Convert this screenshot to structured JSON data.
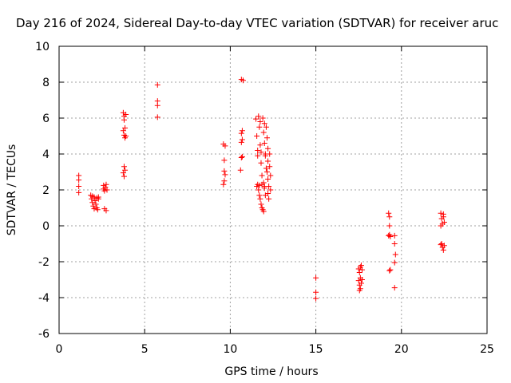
{
  "chart_data": {
    "type": "scatter",
    "title": "Day 216 of 2024, Sidereal Day-to-day VTEC variation (SDTVAR) for receiver aruc",
    "xlabel": "GPS time / hours",
    "ylabel": "SDTVAR / TECUs",
    "xlim": [
      0,
      25
    ],
    "ylim": [
      -6,
      10
    ],
    "xticks": [
      0,
      5,
      10,
      15,
      20,
      25
    ],
    "yticks": [
      -6,
      -4,
      -2,
      0,
      2,
      4,
      6,
      8,
      10
    ],
    "grid": true,
    "marker": "+",
    "color": "#ff0000",
    "series": [
      {
        "name": "SDTVAR",
        "points": [
          [
            1.15,
            2.8
          ],
          [
            1.15,
            2.55
          ],
          [
            1.15,
            2.2
          ],
          [
            1.15,
            1.85
          ],
          [
            1.85,
            1.7
          ],
          [
            1.9,
            1.5
          ],
          [
            1.95,
            1.3
          ],
          [
            2.0,
            1.1
          ],
          [
            2.05,
            1.6
          ],
          [
            2.1,
            1.4
          ],
          [
            2.15,
            1.2
          ],
          [
            2.2,
            1.0
          ],
          [
            2.25,
            0.9
          ],
          [
            2.3,
            1.6
          ],
          [
            2.3,
            1.5
          ],
          [
            1.95,
            1.65
          ],
          [
            2.05,
            0.95
          ],
          [
            2.2,
            1.55
          ],
          [
            2.6,
            2.25
          ],
          [
            2.6,
            2.05
          ],
          [
            2.65,
            1.95
          ],
          [
            2.7,
            2.15
          ],
          [
            2.75,
            2.3
          ],
          [
            2.8,
            2.0
          ],
          [
            2.65,
            0.95
          ],
          [
            2.75,
            0.85
          ],
          [
            3.75,
            6.3
          ],
          [
            3.8,
            6.1
          ],
          [
            3.8,
            5.9
          ],
          [
            3.85,
            5.45
          ],
          [
            3.75,
            5.3
          ],
          [
            3.8,
            5.05
          ],
          [
            3.85,
            4.9
          ],
          [
            3.8,
            3.3
          ],
          [
            3.85,
            3.1
          ],
          [
            3.75,
            2.95
          ],
          [
            3.8,
            2.75
          ],
          [
            3.9,
            6.2
          ],
          [
            3.9,
            5.0
          ],
          [
            5.75,
            7.85
          ],
          [
            5.75,
            6.95
          ],
          [
            5.75,
            6.7
          ],
          [
            5.75,
            6.05
          ],
          [
            9.6,
            4.55
          ],
          [
            9.7,
            4.45
          ],
          [
            9.65,
            3.65
          ],
          [
            9.65,
            3.05
          ],
          [
            9.7,
            2.85
          ],
          [
            9.65,
            2.5
          ],
          [
            9.6,
            2.3
          ],
          [
            10.65,
            8.15
          ],
          [
            10.75,
            8.1
          ],
          [
            10.7,
            5.3
          ],
          [
            10.65,
            5.15
          ],
          [
            10.7,
            4.8
          ],
          [
            10.65,
            4.65
          ],
          [
            10.7,
            3.85
          ],
          [
            10.65,
            3.8
          ],
          [
            10.6,
            3.1
          ],
          [
            11.5,
            5.95
          ],
          [
            11.55,
            5.0
          ],
          [
            11.6,
            4.2
          ],
          [
            11.65,
            6.1
          ],
          [
            11.7,
            5.5
          ],
          [
            11.75,
            4.5
          ],
          [
            11.8,
            3.5
          ],
          [
            11.85,
            2.8
          ],
          [
            11.6,
            2.3
          ],
          [
            11.65,
            2.0
          ],
          [
            11.7,
            1.7
          ],
          [
            11.75,
            1.5
          ],
          [
            11.8,
            1.2
          ],
          [
            11.85,
            1.0
          ],
          [
            11.9,
            6.0
          ],
          [
            11.95,
            5.2
          ],
          [
            12.0,
            4.6
          ],
          [
            12.05,
            3.9
          ],
          [
            12.1,
            3.2
          ],
          [
            11.95,
            2.4
          ],
          [
            12.0,
            2.1
          ],
          [
            12.05,
            1.7
          ],
          [
            11.9,
            0.9
          ],
          [
            11.95,
            0.8
          ],
          [
            12.1,
            5.5
          ],
          [
            12.15,
            4.9
          ],
          [
            12.2,
            4.3
          ],
          [
            12.2,
            3.6
          ],
          [
            12.15,
            3.0
          ],
          [
            12.2,
            2.6
          ],
          [
            12.25,
            2.2
          ],
          [
            12.2,
            1.8
          ],
          [
            12.25,
            1.5
          ],
          [
            12.3,
            4.0
          ],
          [
            12.3,
            3.3
          ],
          [
            12.35,
            2.8
          ],
          [
            12.35,
            2.0
          ],
          [
            11.55,
            2.2
          ],
          [
            11.7,
            2.25
          ],
          [
            11.85,
            2.3
          ],
          [
            12.0,
            2.2
          ],
          [
            11.6,
            3.9
          ],
          [
            11.8,
            4.1
          ],
          [
            12.05,
            4.0
          ],
          [
            11.75,
            5.8
          ],
          [
            12.0,
            5.7
          ],
          [
            15.0,
            -2.9
          ],
          [
            15.0,
            -3.7
          ],
          [
            15.0,
            -4.05
          ],
          [
            17.5,
            -2.4
          ],
          [
            17.55,
            -2.6
          ],
          [
            17.6,
            -2.3
          ],
          [
            17.65,
            -2.2
          ],
          [
            17.7,
            -2.45
          ],
          [
            17.5,
            -3.05
          ],
          [
            17.55,
            -3.3
          ],
          [
            17.6,
            -3.5
          ],
          [
            17.65,
            -3.2
          ],
          [
            17.7,
            -3.0
          ],
          [
            17.55,
            -3.6
          ],
          [
            17.6,
            -2.9
          ],
          [
            19.25,
            0.7
          ],
          [
            19.3,
            0.5
          ],
          [
            19.3,
            0.0
          ],
          [
            19.3,
            -0.5
          ],
          [
            19.35,
            -0.6
          ],
          [
            19.25,
            -0.55
          ],
          [
            19.35,
            -2.45
          ],
          [
            19.3,
            -2.5
          ],
          [
            19.6,
            -0.55
          ],
          [
            19.6,
            -1.0
          ],
          [
            19.65,
            -1.6
          ],
          [
            19.6,
            -2.05
          ],
          [
            19.6,
            -3.45
          ],
          [
            22.3,
            0.7
          ],
          [
            22.35,
            0.4
          ],
          [
            22.4,
            0.1
          ],
          [
            22.45,
            0.5
          ],
          [
            22.5,
            0.2
          ],
          [
            22.3,
            0.0
          ],
          [
            22.45,
            0.65
          ],
          [
            22.35,
            -1.0
          ],
          [
            22.4,
            -1.2
          ],
          [
            22.45,
            -1.35
          ],
          [
            22.5,
            -1.1
          ],
          [
            22.3,
            -1.05
          ]
        ]
      }
    ]
  }
}
